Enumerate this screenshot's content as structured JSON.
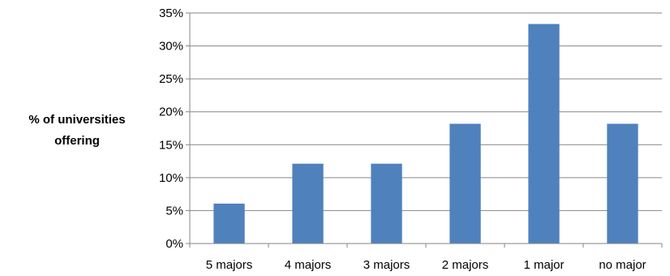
{
  "chart_data": {
    "type": "bar",
    "categories": [
      "5 majors",
      "4 majors",
      "3 majors",
      "2 majors",
      "1 major",
      "no major"
    ],
    "values": [
      6.06,
      12.12,
      12.12,
      18.18,
      33.33,
      18.18
    ],
    "ylabel": [
      "% of universities",
      "offering"
    ],
    "xlabel": "",
    "title": "",
    "ylim": [
      0,
      35
    ],
    "yticks": [
      "0%",
      "5%",
      "10%",
      "15%",
      "20%",
      "25%",
      "30%",
      "35%"
    ],
    "grid": true,
    "legend": "none",
    "bar_color": "#4F81BD",
    "axis_color": "#868686"
  }
}
